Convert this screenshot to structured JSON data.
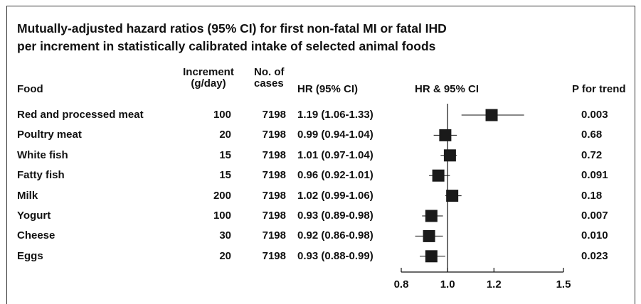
{
  "title_line1": "Mutually-adjusted hazard ratios (95% CI) for first non-fatal MI or fatal IHD",
  "title_line2": "per increment in statistically calibrated intake of selected animal foods",
  "headers": {
    "food": "Food",
    "increment_l1": "Increment",
    "increment_l2": "(g/day)",
    "cases_l1": "No. of",
    "cases_l2": "cases",
    "hr": "HR (95% CI)",
    "plot": "HR & 95% CI",
    "p": "P for trend"
  },
  "rows": [
    {
      "food": "Red and processed meat",
      "increment": "100",
      "cases": "7198",
      "hr_text": "1.19 (1.06-1.33)",
      "p": "0.003"
    },
    {
      "food": "Poultry meat",
      "increment": "20",
      "cases": "7198",
      "hr_text": "0.99 (0.94-1.04)",
      "p": "0.68"
    },
    {
      "food": "White fish",
      "increment": "15",
      "cases": "7198",
      "hr_text": "1.01 (0.97-1.04)",
      "p": "0.72"
    },
    {
      "food": "Fatty fish",
      "increment": "15",
      "cases": "7198",
      "hr_text": "0.96 (0.92-1.01)",
      "p": "0.091"
    },
    {
      "food": "Milk",
      "increment": "200",
      "cases": "7198",
      "hr_text": "1.02 (0.99-1.06)",
      "p": "0.18"
    },
    {
      "food": "Yogurt",
      "increment": "100",
      "cases": "7198",
      "hr_text": "0.93 (0.89-0.98)",
      "p": "0.007"
    },
    {
      "food": "Cheese",
      "increment": "30",
      "cases": "7198",
      "hr_text": "0.92 (0.86-0.98)",
      "p": "0.010"
    },
    {
      "food": "Eggs",
      "increment": "20",
      "cases": "7198",
      "hr_text": "0.93 (0.88-0.99)",
      "p": "0.023"
    }
  ],
  "chart_data": {
    "type": "scatter",
    "subtype": "forest-plot",
    "categories": [
      "Red and processed meat",
      "Poultry meat",
      "White fish",
      "Fatty fish",
      "Milk",
      "Yogurt",
      "Cheese",
      "Eggs"
    ],
    "series": [
      {
        "name": "HR & 95% CI",
        "hr": [
          1.19,
          0.99,
          1.01,
          0.96,
          1.02,
          0.93,
          0.92,
          0.93
        ],
        "ci_low": [
          1.06,
          0.94,
          0.97,
          0.92,
          0.99,
          0.89,
          0.86,
          0.88
        ],
        "ci_high": [
          1.33,
          1.04,
          1.04,
          1.01,
          1.06,
          0.98,
          0.98,
          0.99
        ]
      }
    ],
    "xlim": [
      0.8,
      1.5
    ],
    "xticks": [
      0.8,
      1.0,
      1.2,
      1.5
    ],
    "xtick_labels": [
      "0.8",
      "1.0",
      "1.2",
      "1.5"
    ],
    "reference_line": 1.0,
    "xlabel": "",
    "ylabel": "",
    "grid": false,
    "marker_color": "#1a1a1a"
  }
}
